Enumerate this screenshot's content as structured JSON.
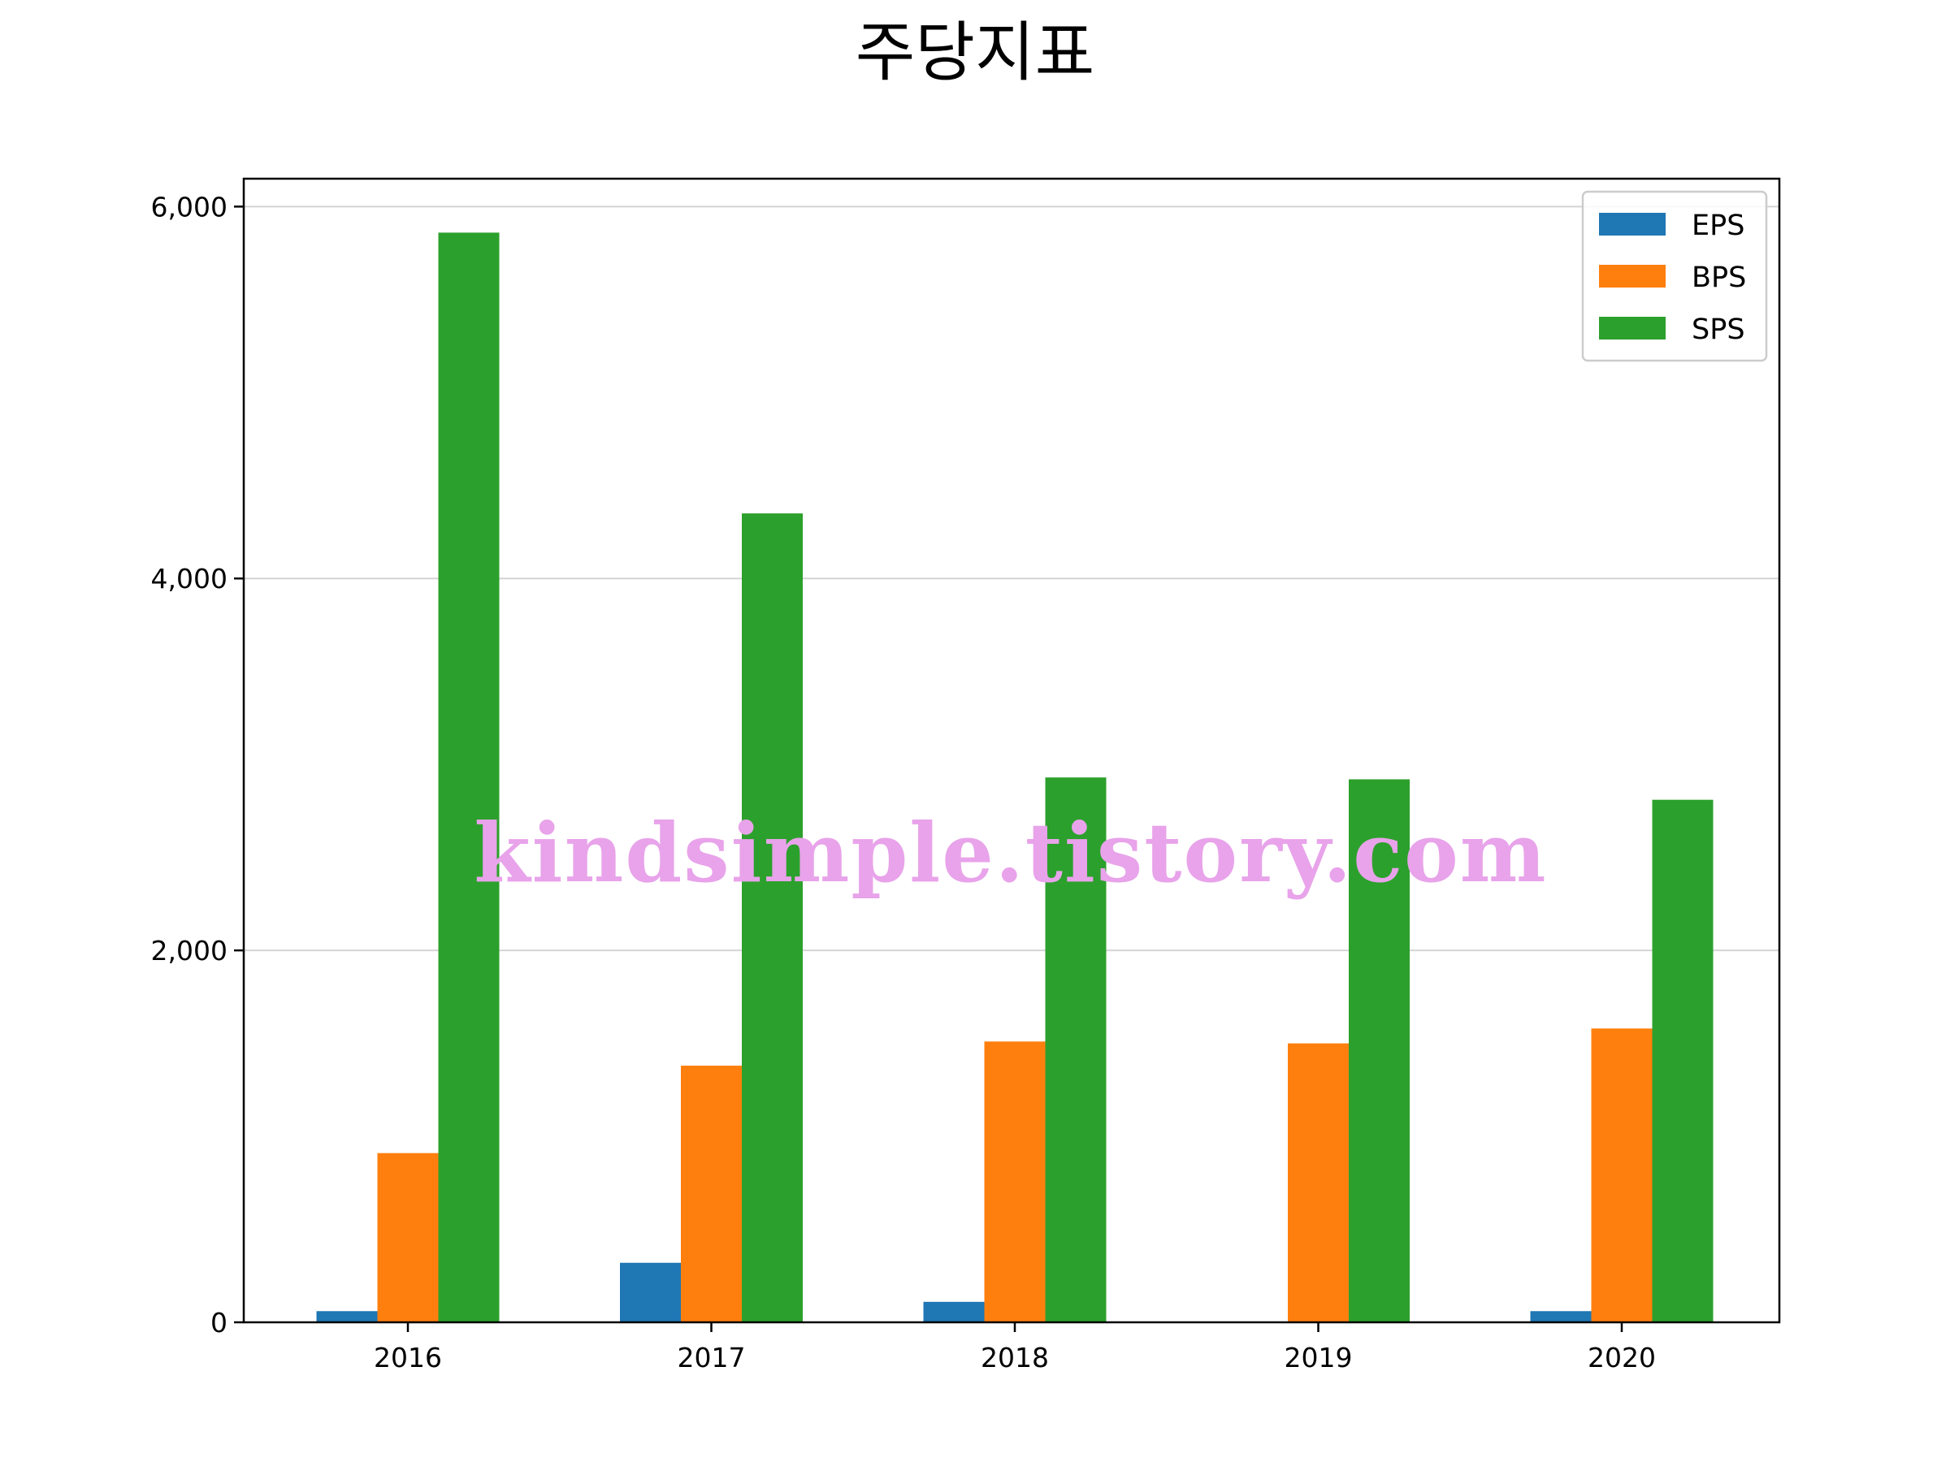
{
  "chart_data": {
    "type": "bar",
    "title": "주당지표",
    "xlabel": "",
    "ylabel": "",
    "categories": [
      "2016",
      "2017",
      "2018",
      "2019",
      "2020"
    ],
    "series": [
      {
        "name": "EPS",
        "color": "#1f77b4",
        "values": [
          60,
          320,
          110,
          0,
          60
        ]
      },
      {
        "name": "BPS",
        "color": "#ff7f0e",
        "values": [
          910,
          1380,
          1510,
          1500,
          1580
        ]
      },
      {
        "name": "SPS",
        "color": "#2ca02c",
        "values": [
          5860,
          4350,
          2930,
          2920,
          2810
        ]
      }
    ],
    "ylim": [
      0,
      6150
    ],
    "yticks": [
      0,
      2000,
      4000,
      6000
    ],
    "ytick_labels": [
      "0",
      "2,000",
      "4,000",
      "6,000"
    ],
    "grid": "y",
    "legend_position": "top-right"
  },
  "watermark": "kindsimple.tistory.com"
}
